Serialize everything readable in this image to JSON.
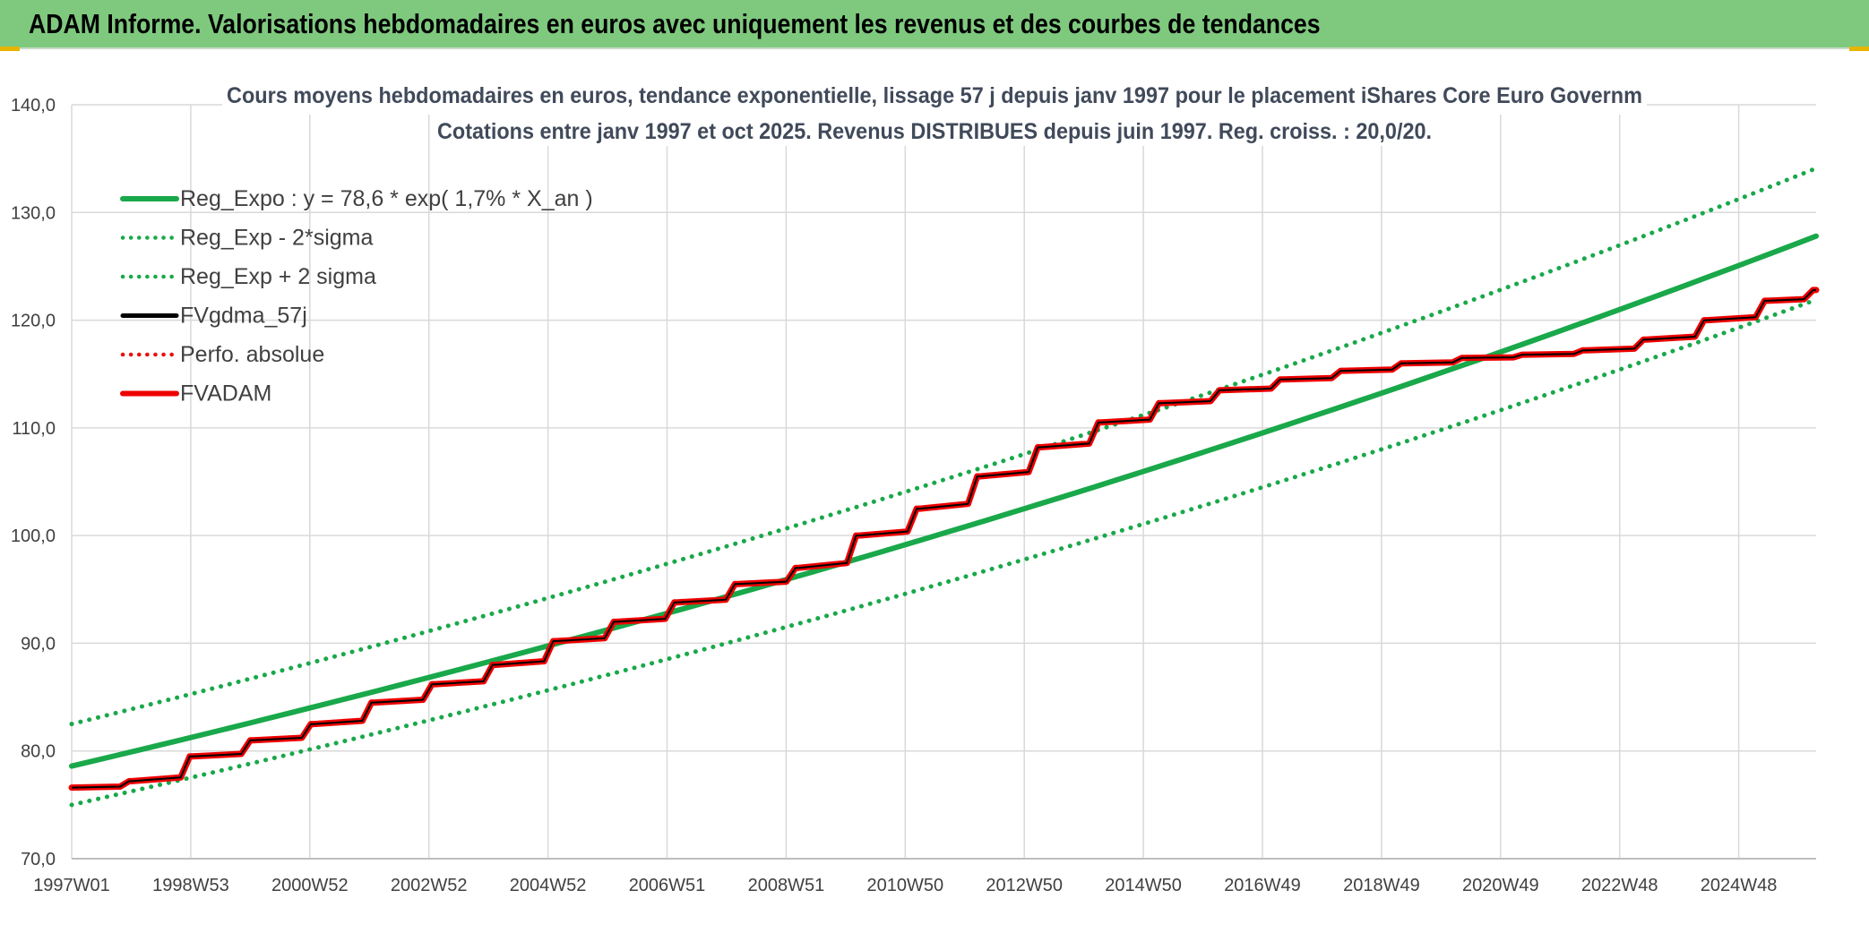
{
  "header": {
    "title": "ADAM Informe. Valorisations hebdomadaires en euros avec uniquement les revenus et des courbes de tendances"
  },
  "colors": {
    "banner": "#7fc97f",
    "trend": "#19a84a",
    "gdma": "#000000",
    "perf": "#e81010",
    "fvadam": "#ee0000"
  },
  "chart_data": {
    "type": "line",
    "title_line1": "Cours moyens hebdomadaires en euros, tendance exponentielle, lissage 57 j depuis janv 1997 pour le placement iShares Core Euro Governm",
    "title_line2": "Cotations entre janv 1997 et oct 2025. Revenus DISTRIBUES depuis juin 1997. Reg. croiss. : 20,0/20.",
    "x_tick_labels": [
      "1997W01",
      "1998W53",
      "2000W52",
      "2002W52",
      "2004W52",
      "2006W51",
      "2008W51",
      "2010W50",
      "2012W50",
      "2014W50",
      "2016W49",
      "2018W49",
      "2020W49",
      "2022W48",
      "2024W48"
    ],
    "x_range": [
      1997.0,
      2025.8
    ],
    "ylim": [
      70,
      140
    ],
    "y_tick_labels": [
      "70,0",
      "80,0",
      "90,0",
      "100,0",
      "110,0",
      "120,0",
      "130,0",
      "140,0"
    ],
    "grid": true,
    "legend_position": "top-left",
    "series": [
      {
        "name": "Reg_Expo : y = 78,6 * exp( 1,7% *  X_an )",
        "style": "solid",
        "color": "#19a84a",
        "points": [
          [
            1997.0,
            78.6
          ],
          [
            2001.0,
            84.3
          ],
          [
            2005.0,
            90.2
          ],
          [
            2009.0,
            96.6
          ],
          [
            2013.0,
            103.4
          ],
          [
            2017.0,
            110.7
          ],
          [
            2021.0,
            118.5
          ],
          [
            2025.8,
            127.8
          ]
        ]
      },
      {
        "name": "Reg_Exp - 2*sigma",
        "style": "dotted",
        "color": "#19a84a",
        "points": [
          [
            1997.0,
            75.0
          ],
          [
            2001.0,
            80.4
          ],
          [
            2005.0,
            86.1
          ],
          [
            2009.0,
            92.2
          ],
          [
            2013.0,
            98.7
          ],
          [
            2017.0,
            105.7
          ],
          [
            2021.0,
            113.1
          ],
          [
            2025.8,
            121.9
          ]
        ]
      },
      {
        "name": "Reg_Exp + 2 sigma",
        "style": "dotted",
        "color": "#19a84a",
        "points": [
          [
            1997.0,
            82.5
          ],
          [
            2001.0,
            88.3
          ],
          [
            2005.0,
            94.6
          ],
          [
            2009.0,
            101.2
          ],
          [
            2013.0,
            108.4
          ],
          [
            2017.0,
            116.0
          ],
          [
            2021.0,
            124.2
          ],
          [
            2025.8,
            134.1
          ]
        ]
      },
      {
        "name": "FVgdma_57j",
        "style": "solid",
        "color": "#000000",
        "points": [
          [
            1997.0,
            76.6
          ],
          [
            1998.0,
            77.2
          ],
          [
            1999.0,
            79.5
          ],
          [
            2000.0,
            81.0
          ],
          [
            2001.0,
            82.5
          ],
          [
            2002.0,
            84.5
          ],
          [
            2003.0,
            86.2
          ],
          [
            2004.0,
            88.0
          ],
          [
            2005.0,
            90.2
          ],
          [
            2006.0,
            92.0
          ],
          [
            2007.0,
            93.8
          ],
          [
            2008.0,
            95.5
          ],
          [
            2009.0,
            97.0
          ],
          [
            2010.0,
            100.0
          ],
          [
            2011.0,
            102.5
          ],
          [
            2012.0,
            105.5
          ],
          [
            2013.0,
            108.2
          ],
          [
            2014.0,
            110.5
          ],
          [
            2015.0,
            112.3
          ],
          [
            2016.0,
            113.5
          ],
          [
            2017.0,
            114.5
          ],
          [
            2018.0,
            115.3
          ],
          [
            2019.0,
            116.0
          ],
          [
            2020.0,
            116.5
          ],
          [
            2021.0,
            116.8
          ],
          [
            2022.0,
            117.2
          ],
          [
            2023.0,
            118.2
          ],
          [
            2024.0,
            120.0
          ],
          [
            2025.0,
            121.8
          ],
          [
            2025.8,
            122.8
          ]
        ]
      },
      {
        "name": "Perfo. absolue",
        "style": "dotted",
        "color": "#e81010",
        "points": []
      },
      {
        "name": "FVADAM",
        "style": "solid",
        "color": "#ee0000",
        "points": [
          [
            1997.0,
            76.6
          ],
          [
            1998.0,
            77.2
          ],
          [
            1999.0,
            79.5
          ],
          [
            2000.0,
            81.0
          ],
          [
            2001.0,
            82.5
          ],
          [
            2002.0,
            84.5
          ],
          [
            2003.0,
            86.2
          ],
          [
            2004.0,
            88.0
          ],
          [
            2005.0,
            90.2
          ],
          [
            2006.0,
            92.0
          ],
          [
            2007.0,
            93.8
          ],
          [
            2008.0,
            95.5
          ],
          [
            2009.0,
            97.0
          ],
          [
            2010.0,
            100.0
          ],
          [
            2011.0,
            102.5
          ],
          [
            2012.0,
            105.5
          ],
          [
            2013.0,
            108.2
          ],
          [
            2014.0,
            110.5
          ],
          [
            2015.0,
            112.3
          ],
          [
            2016.0,
            113.5
          ],
          [
            2017.0,
            114.5
          ],
          [
            2018.0,
            115.3
          ],
          [
            2019.0,
            116.0
          ],
          [
            2020.0,
            116.5
          ],
          [
            2021.0,
            116.8
          ],
          [
            2022.0,
            117.2
          ],
          [
            2023.0,
            118.2
          ],
          [
            2024.0,
            120.0
          ],
          [
            2025.0,
            121.8
          ],
          [
            2025.8,
            122.8
          ]
        ]
      }
    ]
  }
}
